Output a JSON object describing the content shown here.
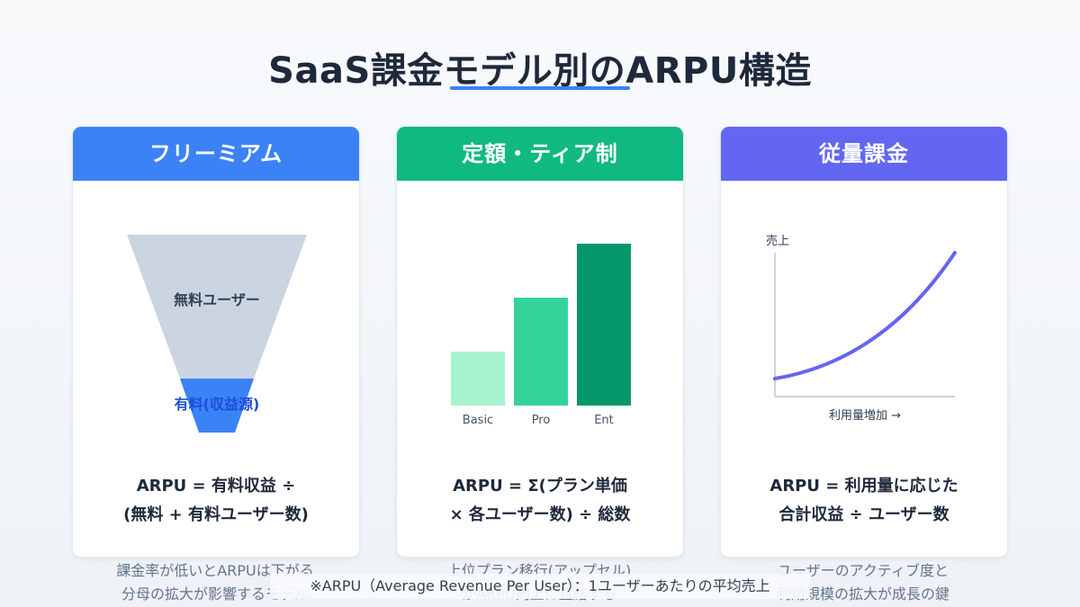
{
  "title": "SaaS課金モデル別のARPU構造",
  "colors": {
    "freemium": "#3b82f6",
    "tier": "#10b981",
    "usage": "#6366f1"
  },
  "cards": [
    {
      "header": "フリーミアム",
      "funnel": {
        "free_label": "無料ユーザー",
        "paid_label": "有料(収益源)"
      },
      "formula_line1": "ARPU = 有料収益 ÷",
      "formula_line2": "(無料 + 有料ユーザー数)",
      "note_line1": "課金率が低いとARPUは下がる",
      "note_line2": "分母の拡大が影響するモデル"
    },
    {
      "header": "定額・ティア制",
      "tiers": [
        {
          "label": "Basic",
          "relative_height": 1.0
        },
        {
          "label": "Pro",
          "relative_height": 2.0
        },
        {
          "label": "Ent",
          "relative_height": 3.0
        }
      ],
      "formula_line1": "ARPU = Σ(プラン単価",
      "formula_line2": "× 各ユーザー数) ÷ 総数",
      "note_line1": "上位プラン移行(アップセル)",
      "note_line2": "がARPU向上に直結する"
    },
    {
      "header": "従量課金",
      "chart_data": {
        "type": "line",
        "ylabel": "売上",
        "xlabel": "利用量増加 →",
        "shape": "convex-increasing"
      },
      "formula_line1": "ARPU = 利用量に応じた",
      "formula_line2": "合計収益 ÷ ユーザー数",
      "note_line1": "ユーザーのアクティブ度と",
      "note_line2": "利用規模の拡大が成長の鍵"
    }
  ],
  "footnote": "※ARPU（Average Revenue Per User）：1ユーザーあたりの平均売上"
}
